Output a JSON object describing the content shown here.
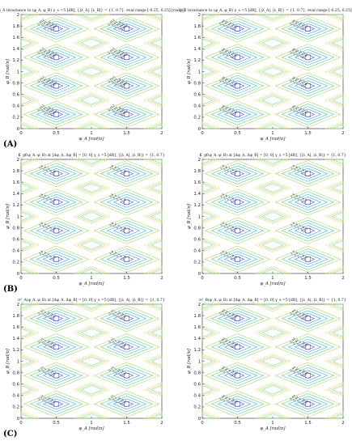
{
  "figure": {
    "row_labels": [
      "(A)",
      "(B)",
      "(C)"
    ],
    "contour_colors": [
      "#3b4cc0",
      "#2c8fd6",
      "#26b5c8",
      "#52c38a",
      "#a6d14a",
      "#e6d35a"
    ]
  },
  "chart_data": [
    {
      "type": "contour",
      "row": "(A)",
      "title": "g_A invariance to (φ_A, φ_B) γ_s =5 [dB], {|λ_A|, |λ_B|} = {1, 0.7}, eval range [-0.25, 0.25] [rad/π]",
      "xlabel": "φ_A [rad/π]",
      "ylabel": "φ_B [rad/π]",
      "xlim": [
        0,
        2
      ],
      "ylim": [
        0,
        2
      ],
      "xticks": [
        "0",
        "0.5",
        "1",
        "1.5",
        "2"
      ],
      "yticks": [
        "0",
        "0.2",
        "0.4",
        "0.6",
        "0.8",
        "1",
        "1.2",
        "1.4",
        "1.6",
        "1.8",
        "2"
      ],
      "centers_x": [
        0.5,
        1.5
      ],
      "centers_y": [
        0.25,
        0.75,
        1.25,
        1.75
      ],
      "levels": [
        0.004,
        0.006,
        0.008,
        0.01,
        0.012
      ],
      "contour_labels": [
        "0.004",
        "0.006",
        "0.008",
        "0.01",
        "0.012"
      ]
    },
    {
      "type": "contour",
      "row": "(A)",
      "title": "g_B invariance to (φ_A, φ_B) γ_s =5 [dB], {|λ_A|, |λ_B|} = {1, 0.7}, eval range [-0.25, 0.25] [rad/π]",
      "xlabel": "φ_A [rad/π]",
      "ylabel": "φ_B [rad/π]",
      "xlim": [
        0,
        2
      ],
      "ylim": [
        0,
        2
      ],
      "xticks": [
        "0",
        "0.5",
        "1",
        "1.5",
        "2"
      ],
      "yticks": [
        "0",
        "0.2",
        "0.4",
        "0.6",
        "0.8",
        "1",
        "1.2",
        "1.4",
        "1.6",
        "1.8",
        "2"
      ],
      "centers_x": [
        0.5,
        1.5
      ],
      "centers_y": [
        0.25,
        0.75,
        1.25,
        1.75
      ],
      "levels": [
        0.02,
        0.03,
        0.04,
        0.05,
        0.06
      ],
      "contour_labels": [
        "0.02",
        "0.03",
        "0.04",
        "0.05",
        "0.06"
      ]
    },
    {
      "type": "contour",
      "row": "(B)",
      "title": "K_gf(φ_A, φ_B) at [Δφ_A, Δφ_B] = [0, 0] γ_s =5 [dB], {|λ_A|, |λ_B|} = {1, 0.7}",
      "xlabel": "φ_A [rad/π]",
      "ylabel": "φ_B [rad/π]",
      "xlim": [
        0,
        2
      ],
      "ylim": [
        0,
        2
      ],
      "xticks": [
        "0",
        "0.5",
        "1",
        "1.5",
        "2"
      ],
      "yticks": [
        "0",
        "0.2",
        "0.4",
        "0.6",
        "0.8",
        "1",
        "1.2",
        "1.4",
        "1.6",
        "1.8",
        "2"
      ],
      "centers_x": [
        0.5,
        1.5
      ],
      "centers_y": [
        0.25,
        0.75,
        1.25,
        1.75
      ],
      "levels": [
        2.8,
        3.0,
        3.2,
        3.4,
        3.6
      ],
      "contour_labels": [
        "2.8",
        "3",
        "3.2",
        "3.4",
        "3.6"
      ]
    },
    {
      "type": "contour",
      "row": "(B)",
      "title": "K_gf(φ_A, φ_B) at [Δφ_A, Δφ_B] = [0, 0] γ_s =5 [dB], {|λ_A|, |λ_B|} = {1, 0.7}",
      "xlabel": "φ_A [rad/π]",
      "ylabel": "φ_B [rad/π]",
      "xlim": [
        0,
        2
      ],
      "ylim": [
        0,
        2
      ],
      "xticks": [
        "0",
        "0.5",
        "1",
        "1.5",
        "2"
      ],
      "yticks": [
        "0",
        "0.2",
        "0.4",
        "0.6",
        "0.8",
        "1",
        "1.2",
        "1.4",
        "1.6",
        "1.8",
        "2"
      ],
      "centers_x": [
        0.5,
        1.5
      ],
      "centers_y": [
        0.25,
        0.75,
        1.25,
        1.75
      ],
      "levels": [
        2.5,
        2.6,
        2.7,
        2.8,
        2.9
      ],
      "contour_labels": [
        "2.5",
        "2.6",
        "2.7",
        "2.8",
        "2.9"
      ]
    },
    {
      "type": "contour",
      "row": "(C)",
      "title": "σ²_A(φ_A, φ_B) at [Δφ_A, Δφ_B] = [0, 0] γ_s =5 [dB], {|λ_A|, |λ_B|} = {1, 0.7}",
      "xlabel": "φ_A [rad/π]",
      "ylabel": "φ_B [rad/π]",
      "xlim": [
        0,
        2
      ],
      "ylim": [
        0,
        2
      ],
      "xticks": [
        "0",
        "0.5",
        "1",
        "1.5",
        "2"
      ],
      "yticks": [
        "0",
        "0.2",
        "0.4",
        "0.6",
        "0.8",
        "1",
        "1.2",
        "1.4",
        "1.6",
        "1.8",
        "2"
      ],
      "centers_x": [
        0.5,
        1.5
      ],
      "centers_y": [
        0.25,
        0.75,
        1.25,
        1.75
      ],
      "levels": [
        0.17,
        0.18,
        0.19,
        0.2,
        0.21
      ],
      "contour_labels": [
        "0.17",
        "0.18",
        "0.19",
        "0.2",
        "0.21"
      ]
    },
    {
      "type": "contour",
      "row": "(C)",
      "title": "σ²_B(φ_A, φ_B) at [Δφ_A, Δφ_B] = [0, 0] γ_s =5 [dB], {|λ_A|, |λ_B|} = {1, 0.7}",
      "xlabel": "φ_A [rad/π]",
      "ylabel": "φ_B [rad/π]",
      "xlim": [
        0,
        2
      ],
      "ylim": [
        0,
        2
      ],
      "xticks": [
        "0",
        "0.5",
        "1",
        "1.5",
        "2"
      ],
      "yticks": [
        "0",
        "0.2",
        "0.4",
        "0.6",
        "0.8",
        "1",
        "1.2",
        "1.4",
        "1.6",
        "1.8",
        "2"
      ],
      "centers_x": [
        0.5,
        1.5
      ],
      "centers_y": [
        0.25,
        0.75,
        1.25,
        1.75
      ],
      "levels": [
        0.36,
        0.38,
        0.4,
        0.42,
        0.44
      ],
      "contour_labels": [
        "0.36",
        "0.38",
        "0.4",
        "0.42",
        "0.44"
      ]
    }
  ]
}
